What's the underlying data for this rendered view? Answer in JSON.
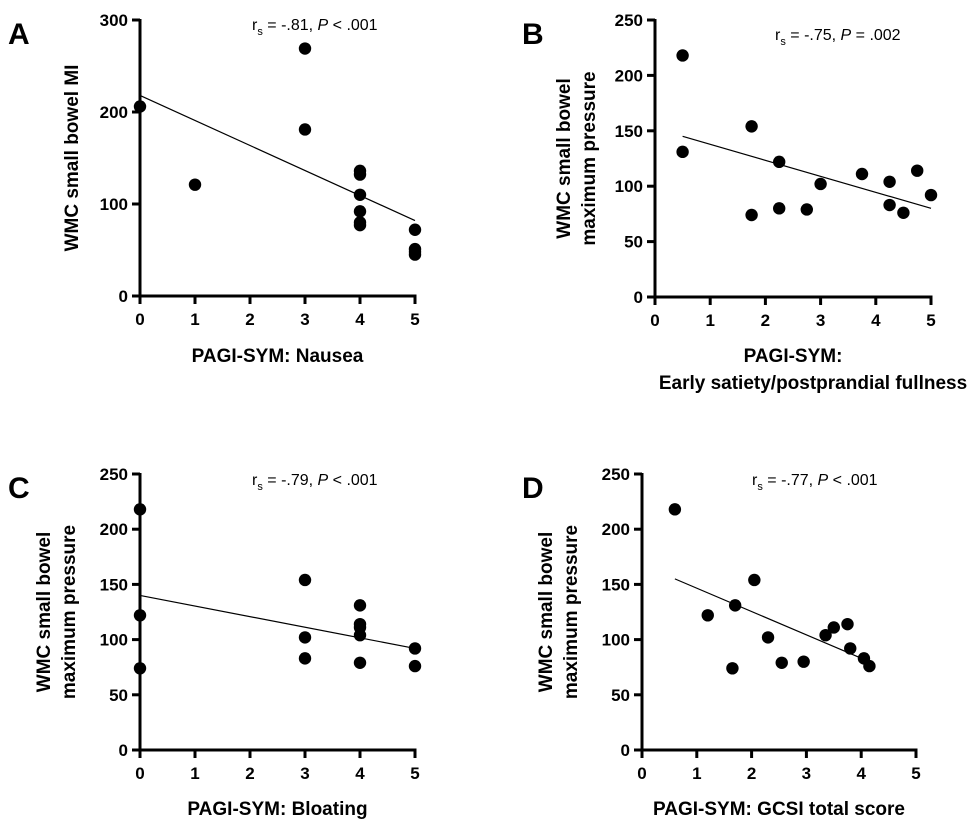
{
  "chart_data": [
    {
      "type": "scatter",
      "panel": "A",
      "xlabel": [
        "PAGI-SYM: Nausea"
      ],
      "ylabel": [
        "WMC small bowel MI"
      ],
      "xlim": [
        0,
        5
      ],
      "ylim": [
        0,
        300
      ],
      "xticks": [
        0,
        1,
        2,
        3,
        4,
        5
      ],
      "yticks": [
        0,
        100,
        200,
        300
      ],
      "annotation": {
        "r_prefix": "r",
        "r_sub": "s",
        "r_text": " = -.81, ",
        "p_italic": "P",
        "p_text": " < .001"
      },
      "trendline": {
        "x": [
          0,
          5
        ],
        "y": [
          218,
          82
        ]
      },
      "points": [
        {
          "x": 0,
          "y": 206
        },
        {
          "x": 1,
          "y": 121
        },
        {
          "x": 3,
          "y": 269
        },
        {
          "x": 3,
          "y": 181
        },
        {
          "x": 4,
          "y": 136
        },
        {
          "x": 4,
          "y": 132
        },
        {
          "x": 4,
          "y": 110
        },
        {
          "x": 4,
          "y": 92
        },
        {
          "x": 4,
          "y": 80
        },
        {
          "x": 4,
          "y": 77
        },
        {
          "x": 5,
          "y": 72
        },
        {
          "x": 5,
          "y": 51
        },
        {
          "x": 5,
          "y": 48
        },
        {
          "x": 5,
          "y": 45
        }
      ]
    },
    {
      "type": "scatter",
      "panel": "B",
      "xlabel": [
        "PAGI-SYM:",
        "Early satiety/postprandial fullness"
      ],
      "ylabel": [
        "WMC small bowel",
        "maximum pressure"
      ],
      "xlim": [
        0,
        5
      ],
      "ylim": [
        0,
        250
      ],
      "xticks": [
        0,
        1,
        2,
        3,
        4,
        5
      ],
      "yticks": [
        0,
        50,
        100,
        150,
        200,
        250
      ],
      "annotation": {
        "r_prefix": "r",
        "r_sub": "s",
        "r_text": " = -.75, ",
        "p_italic": "P",
        "p_text": " = .002"
      },
      "trendline": {
        "x": [
          0.5,
          5
        ],
        "y": [
          145,
          80
        ]
      },
      "points": [
        {
          "x": 0.5,
          "y": 218
        },
        {
          "x": 0.5,
          "y": 131
        },
        {
          "x": 1.75,
          "y": 154
        },
        {
          "x": 1.75,
          "y": 74
        },
        {
          "x": 2.25,
          "y": 122
        },
        {
          "x": 2.25,
          "y": 80
        },
        {
          "x": 2.75,
          "y": 79
        },
        {
          "x": 3,
          "y": 102
        },
        {
          "x": 3.75,
          "y": 111
        },
        {
          "x": 4.25,
          "y": 104
        },
        {
          "x": 4.25,
          "y": 83
        },
        {
          "x": 4.5,
          "y": 76
        },
        {
          "x": 4.75,
          "y": 114
        },
        {
          "x": 5,
          "y": 92
        }
      ]
    },
    {
      "type": "scatter",
      "panel": "C",
      "xlabel": [
        "PAGI-SYM: Bloating"
      ],
      "ylabel": [
        "WMC small bowel",
        "maximum pressure"
      ],
      "xlim": [
        0,
        5
      ],
      "ylim": [
        0,
        250
      ],
      "xticks": [
        0,
        1,
        2,
        3,
        4,
        5
      ],
      "yticks": [
        0,
        50,
        100,
        150,
        200,
        250
      ],
      "annotation": {
        "r_prefix": "r",
        "r_sub": "s",
        "r_text": " = -.79, ",
        "p_italic": "P",
        "p_text": " < .001"
      },
      "trendline": {
        "x": [
          0,
          5
        ],
        "y": [
          140,
          92
        ]
      },
      "points": [
        {
          "x": 0,
          "y": 218
        },
        {
          "x": 0,
          "y": 122
        },
        {
          "x": 0,
          "y": 74
        },
        {
          "x": 3,
          "y": 154
        },
        {
          "x": 3,
          "y": 102
        },
        {
          "x": 3,
          "y": 83
        },
        {
          "x": 4,
          "y": 131
        },
        {
          "x": 4,
          "y": 114
        },
        {
          "x": 4,
          "y": 111
        },
        {
          "x": 4,
          "y": 104
        },
        {
          "x": 4,
          "y": 79
        },
        {
          "x": 5,
          "y": 92
        },
        {
          "x": 5,
          "y": 76
        }
      ]
    },
    {
      "type": "scatter",
      "panel": "D",
      "xlabel": [
        "PAGI-SYM: GCSI total score"
      ],
      "ylabel": [
        "WMC small bowel",
        "maximum pressure"
      ],
      "xlim": [
        0,
        5
      ],
      "ylim": [
        0,
        250
      ],
      "xticks": [
        0,
        1,
        2,
        3,
        4,
        5
      ],
      "yticks": [
        0,
        50,
        100,
        150,
        200,
        250
      ],
      "annotation": {
        "r_prefix": "r",
        "r_sub": "s",
        "r_text": " = -.77, ",
        "p_italic": "P",
        "p_text": " < .001"
      },
      "trendline": {
        "x": [
          0.6,
          4.15
        ],
        "y": [
          155,
          80
        ]
      },
      "points": [
        {
          "x": 0.6,
          "y": 218
        },
        {
          "x": 1.2,
          "y": 122
        },
        {
          "x": 1.65,
          "y": 74
        },
        {
          "x": 1.7,
          "y": 131
        },
        {
          "x": 2.05,
          "y": 154
        },
        {
          "x": 2.3,
          "y": 102
        },
        {
          "x": 2.55,
          "y": 79
        },
        {
          "x": 2.95,
          "y": 80
        },
        {
          "x": 3.35,
          "y": 104
        },
        {
          "x": 3.5,
          "y": 111
        },
        {
          "x": 3.75,
          "y": 114
        },
        {
          "x": 3.8,
          "y": 92
        },
        {
          "x": 4.05,
          "y": 83
        },
        {
          "x": 4.15,
          "y": 76
        }
      ]
    }
  ]
}
